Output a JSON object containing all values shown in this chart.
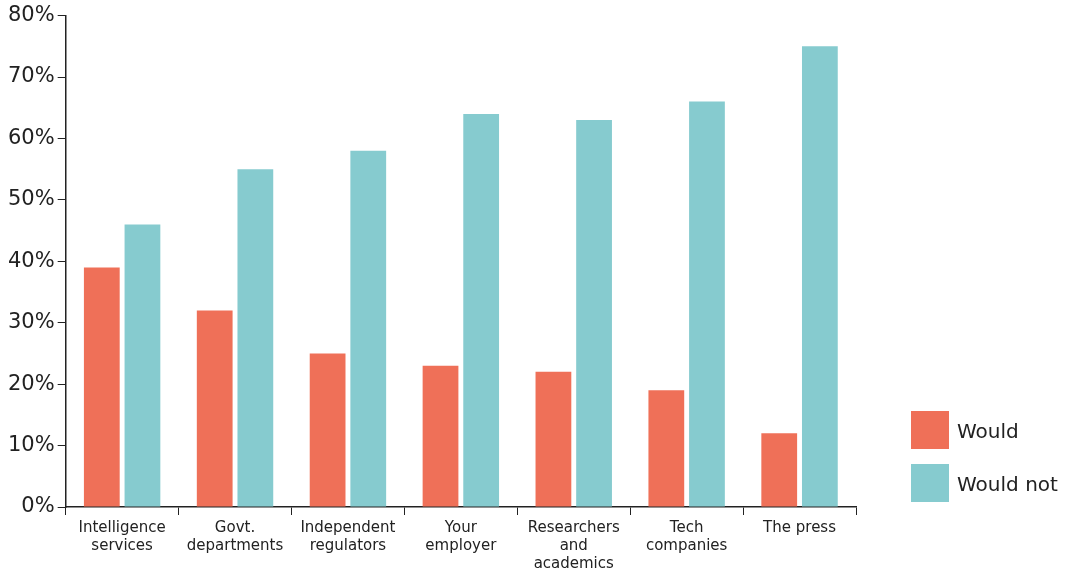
{
  "chart_data": {
    "type": "bar",
    "categories": [
      "Intelligence services",
      "Govt. departments",
      "Independent regulators",
      "Your employer",
      "Researchers and academics",
      "Tech companies",
      "The press"
    ],
    "series": [
      {
        "name": "Would",
        "color": "#ef7058",
        "values": [
          39,
          32,
          25,
          23,
          22,
          19,
          12
        ]
      },
      {
        "name": "Would not",
        "color": "#86cbcf",
        "values": [
          46,
          55,
          58,
          64,
          63,
          66,
          75
        ]
      }
    ],
    "ylim": [
      0,
      80
    ],
    "yticks": [
      {
        "value": 0,
        "label": "0%"
      },
      {
        "value": 10,
        "label": "10%"
      },
      {
        "value": 20,
        "label": "20%"
      },
      {
        "value": 30,
        "label": "30%"
      },
      {
        "value": 40,
        "label": "40%"
      },
      {
        "value": 50,
        "label": "50%"
      },
      {
        "value": 60,
        "label": "60%"
      },
      {
        "value": 70,
        "label": "70%"
      },
      {
        "value": 80,
        "label": "80%"
      }
    ],
    "grid": false,
    "legend": "bottom right"
  }
}
